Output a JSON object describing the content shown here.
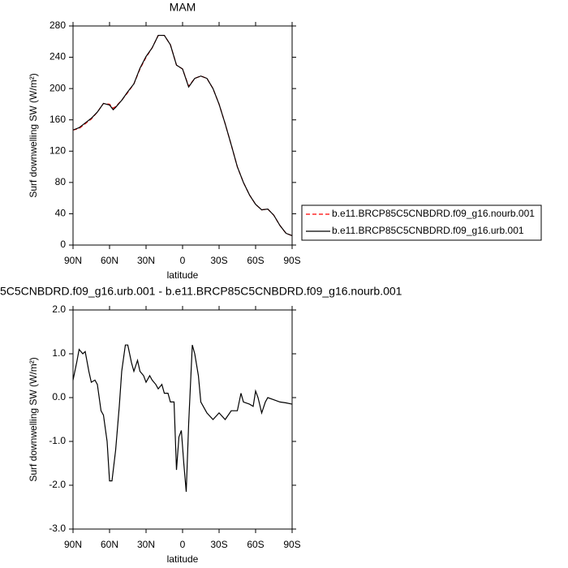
{
  "chart_data": [
    {
      "type": "line",
      "title": "MAM",
      "xlabel": "latitude",
      "ylabel": "Surf downwelling SW (W/m²)",
      "x": [
        90,
        85,
        80,
        75,
        70,
        65,
        60,
        57,
        55,
        50,
        45,
        40,
        35,
        30,
        25,
        20,
        15,
        10,
        5,
        0,
        -5,
        -10,
        -15,
        -20,
        -25,
        -30,
        -35,
        -40,
        -45,
        -50,
        -55,
        -60,
        -65,
        -70,
        -75,
        -80,
        -85,
        -90
      ],
      "series": [
        {
          "name": "b.e11.BRCP85C5CNBDRD.f09_g16.nourb.001",
          "color": "#ff0000",
          "dashed": true,
          "values": [
            147,
            149,
            155,
            161,
            170,
            181,
            180,
            175,
            177,
            185,
            195,
            206,
            225,
            240,
            252,
            268,
            268,
            256,
            230,
            225,
            203,
            213,
            216,
            213,
            200,
            180,
            155,
            128,
            100,
            80,
            64,
            52,
            45,
            46,
            38,
            25,
            15,
            12
          ]
        },
        {
          "name": "b.e11.BRCP85C5CNBDRD.f09_g16.urb.001",
          "color": "#000000",
          "dashed": false,
          "values": [
            147,
            150,
            156,
            162,
            170,
            181,
            179,
            173,
            176,
            185,
            196,
            206,
            226,
            241,
            252,
            268,
            268,
            256,
            230,
            225,
            202,
            213,
            216,
            213,
            200,
            180,
            155,
            128,
            100,
            80,
            64,
            52,
            45,
            46,
            38,
            25,
            15,
            12
          ]
        }
      ],
      "xlim": [
        90,
        -90
      ],
      "xticks": [
        {
          "value": 90,
          "label": "90N"
        },
        {
          "value": 60,
          "label": "60N"
        },
        {
          "value": 30,
          "label": "30N"
        },
        0,
        {
          "value": -30,
          "label": "30S"
        },
        {
          "value": -60,
          "label": "60S"
        },
        {
          "value": -90,
          "label": "90S"
        }
      ],
      "ylim": [
        0,
        280
      ],
      "yticks": [
        0,
        40,
        80,
        120,
        160,
        200,
        240,
        280
      ],
      "legend": "right"
    },
    {
      "type": "line",
      "title": "5C5CNBDRD.f09_g16.urb.001 - b.e11.BRCP85C5CNBDRD.f09_g16.nourb.001",
      "xlabel": "latitude",
      "ylabel": "Surf downwelling SW (W/m²)",
      "x": [
        90,
        87,
        85,
        82,
        80,
        77,
        75,
        72,
        70,
        67,
        65,
        62,
        60,
        58,
        55,
        52,
        50,
        47,
        45,
        42,
        40,
        37,
        35,
        32,
        30,
        27,
        25,
        22,
        20,
        17,
        15,
        12,
        10,
        7,
        5,
        3,
        1,
        -1,
        -3,
        -5,
        -8,
        -10,
        -13,
        -15,
        -20,
        -25,
        -30,
        -35,
        -40,
        -45,
        -48,
        -50,
        -55,
        -58,
        -60,
        -62,
        -65,
        -68,
        -70,
        -75,
        -80,
        -85,
        -90
      ],
      "series": [
        {
          "color": "#000000",
          "dashed": false,
          "values": [
            0.4,
            0.8,
            1.1,
            1.0,
            1.05,
            0.6,
            0.35,
            0.4,
            0.3,
            -0.3,
            -0.4,
            -1.0,
            -1.9,
            -1.9,
            -1.2,
            -0.2,
            0.6,
            1.2,
            1.2,
            0.8,
            0.6,
            0.85,
            0.6,
            0.5,
            0.35,
            0.5,
            0.4,
            0.3,
            0.2,
            0.3,
            0.1,
            0.1,
            -0.1,
            -0.1,
            -1.65,
            -0.9,
            -0.75,
            -1.5,
            -2.15,
            -0.6,
            1.2,
            1.0,
            0.5,
            -0.1,
            -0.35,
            -0.5,
            -0.35,
            -0.5,
            -0.3,
            -0.3,
            0.1,
            -0.1,
            -0.15,
            -0.2,
            0.15,
            0.0,
            -0.35,
            -0.1,
            0.0,
            -0.05,
            -0.1,
            -0.12,
            -0.15
          ]
        }
      ],
      "xlim": [
        90,
        -90
      ],
      "xticks": [
        {
          "value": 90,
          "label": "90N"
        },
        {
          "value": 60,
          "label": "60N"
        },
        {
          "value": 30,
          "label": "30N"
        },
        0,
        {
          "value": -30,
          "label": "30S"
        },
        {
          "value": -60,
          "label": "60S"
        },
        {
          "value": -90,
          "label": "90S"
        }
      ],
      "ylim": [
        -3,
        2
      ],
      "yticks": [
        {
          "value": -3,
          "label": "-3.0"
        },
        {
          "value": -2,
          "label": "-2.0"
        },
        {
          "value": -1,
          "label": "-1.0"
        },
        {
          "value": 0,
          "label": "0.0"
        },
        {
          "value": 1,
          "label": "1.0"
        },
        {
          "value": 2,
          "label": "2.0"
        }
      ]
    }
  ]
}
